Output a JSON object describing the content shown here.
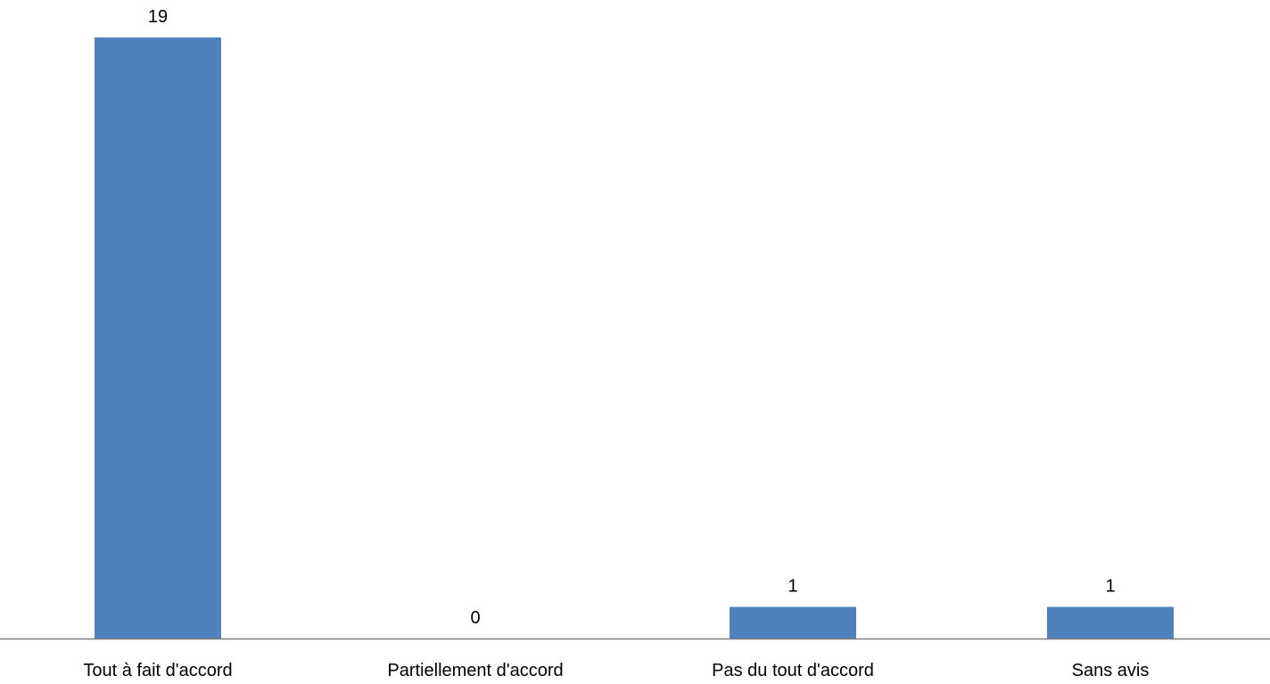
{
  "chart_data": {
    "type": "bar",
    "title": "",
    "xlabel": "",
    "ylabel": "",
    "categories": [
      "Tout à fait d'accord",
      "Partiellement d'accord",
      "Pas du tout d'accord",
      "Sans avis"
    ],
    "values": [
      19,
      0,
      1,
      1
    ],
    "data_labels": [
      "19",
      "0",
      "1",
      "1"
    ],
    "ylim": [
      0,
      19
    ],
    "grid": false,
    "legend": "none",
    "bar_color": "#4F81BD",
    "axis_color": "#7F7F7F"
  }
}
